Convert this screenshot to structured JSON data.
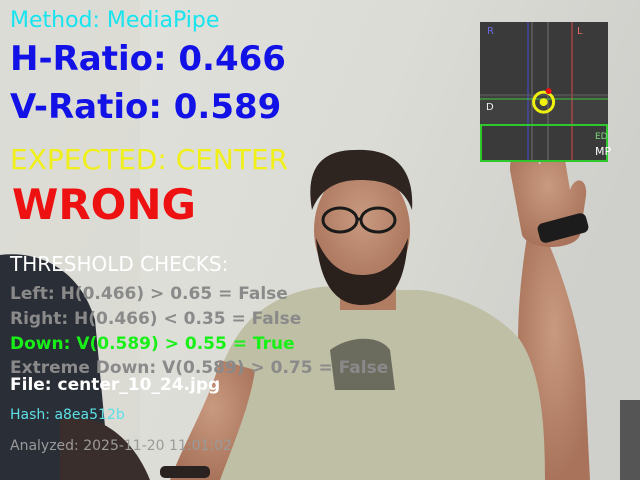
{
  "overlay": {
    "method": "Method: MediaPipe",
    "h_ratio": "H-Ratio: 0.466",
    "v_ratio": "V-Ratio: 0.589",
    "expected": "EXPECTED: CENTER",
    "result": "WRONG"
  },
  "threshold": {
    "title": "THRESHOLD CHECKS:",
    "checks": [
      {
        "text": "Left: H(0.466) > 0.65 = False"
      },
      {
        "text": "Right: H(0.466) < 0.35 = False"
      },
      {
        "text": "Down: V(0.589) > 0.55 = True"
      },
      {
        "text": "Extreme Down: V(0.589) > 0.75 = False"
      }
    ]
  },
  "info": {
    "file": "File: center_10_24.jpg",
    "hash": "Hash: a8ea512b",
    "analyzed": "Analyzed: 2025-11-20 11:01:02"
  },
  "gaze_map": {
    "label_r": "R",
    "label_l": "L",
    "label_d": "D",
    "label_ed": "ED",
    "label_mp": "MP",
    "gaze": {
      "h": 0.466,
      "v": 0.589
    }
  },
  "colors": {
    "method": "#16e4ee",
    "ratio": "#1212e6",
    "expected": "#f0f018",
    "wrong": "#ee1111",
    "check_true": "#18f018",
    "check_false": "#8a8a8a"
  }
}
